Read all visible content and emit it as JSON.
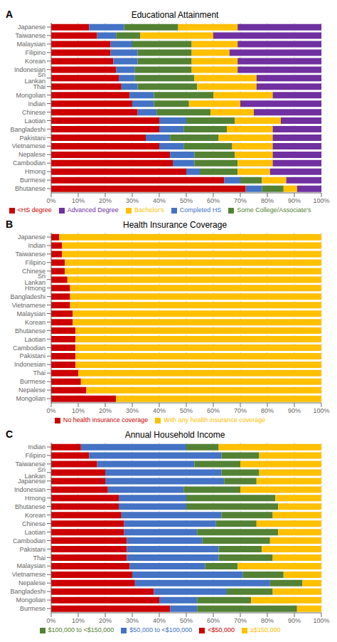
{
  "chart_data": [
    {
      "type": "bar",
      "title": "Educational Attainment",
      "annotations": [
        "A"
      ],
      "orientation": "horizontal",
      "stacked": true,
      "grid": true,
      "legend": "bottom",
      "categories": [
        "Japanese",
        "Taiwanese",
        "Malaysian",
        "Filipino",
        "Korean",
        "Indonesian",
        "Sri Lankan",
        "Thai",
        "Mongolian",
        "Indian",
        "Chinese",
        "Laotian",
        "Bangladeshi",
        "Pakistani",
        "Vietnamese",
        "Nepalese",
        "Cambodian",
        "Hmong",
        "Burmese",
        "Bhutanese"
      ],
      "series": [
        {
          "name": "<HS degree",
          "color": "#cc0000",
          "values": [
            14,
            17,
            22,
            22,
            23,
            24,
            25,
            26,
            29,
            30,
            32,
            40,
            40,
            35,
            40,
            44,
            45,
            50,
            64,
            72
          ]
        },
        {
          "name": "Completed HS",
          "color": "#4472c4",
          "values": [
            13,
            7,
            8,
            10,
            9,
            7,
            6,
            6,
            9,
            8,
            7,
            10,
            9,
            9,
            9,
            9,
            8,
            5,
            6,
            6
          ]
        },
        {
          "name": "Some College/Associate's",
          "color": "#548235",
          "values": [
            20,
            9,
            22,
            20,
            20,
            21,
            22,
            22,
            22,
            13,
            20,
            18,
            16,
            18,
            18,
            15,
            16,
            14,
            8,
            8
          ]
        },
        {
          "name": "Bachelor's",
          "color": "#ffc000",
          "values": [
            22,
            27,
            17,
            14,
            17,
            17,
            23,
            22,
            22,
            19,
            16,
            17,
            17,
            20,
            15,
            14,
            13,
            12,
            9,
            5
          ]
        },
        {
          "name": "Advanced Degree",
          "color": "#7030a0",
          "values": [
            31,
            40,
            31,
            34,
            31,
            31,
            24,
            24,
            18,
            30,
            25,
            15,
            18,
            18,
            18,
            18,
            18,
            19,
            13,
            9
          ]
        }
      ],
      "xlim": [
        0,
        100
      ],
      "xticks": [
        {
          "value": 0,
          "label": "0%"
        },
        {
          "value": 10,
          "label": "10%"
        },
        {
          "value": 20,
          "label": "20%"
        },
        {
          "value": 30,
          "label": "30%"
        },
        {
          "value": 40,
          "label": "40%"
        },
        {
          "value": 50,
          "label": "50%"
        },
        {
          "value": 60,
          "label": "60%"
        },
        {
          "value": 70,
          "label": "70%"
        },
        {
          "value": 80,
          "label": "80%"
        },
        {
          "value": 90,
          "label": "90%"
        },
        {
          "value": 100,
          "label": "100%"
        }
      ]
    },
    {
      "type": "bar",
      "title": "Health Insurance Coverage",
      "annotations": [
        "B"
      ],
      "orientation": "horizontal",
      "stacked": true,
      "grid": true,
      "legend": "bottom",
      "categories": [
        "Japanese",
        "Indian",
        "Taiwanese",
        "Filipino",
        "Chinese",
        "Sri Lankan",
        "Hmong",
        "Bangladeshi",
        "Vietnamese",
        "Malaysian",
        "Korean",
        "Bhutanese",
        "Laotian",
        "Cambodian",
        "Pakistani",
        "Indonesian",
        "Thai",
        "Burmese",
        "Nepalese",
        "Mongolian"
      ],
      "series": [
        {
          "name": "No health insurance coverage",
          "color": "#cc0000",
          "values": [
            3,
            4,
            4,
            5,
            5,
            6,
            7,
            7,
            7,
            8,
            8,
            9,
            9,
            9,
            9,
            9,
            10,
            11,
            13,
            24
          ]
        },
        {
          "name": "With any health insurance coverage",
          "color": "#ffc000",
          "values": [
            97,
            96,
            96,
            95,
            95,
            94,
            93,
            93,
            93,
            92,
            92,
            91,
            91,
            91,
            91,
            91,
            90,
            89,
            87,
            76
          ]
        }
      ],
      "xlim": [
        0,
        100
      ],
      "xticks": [
        {
          "value": 0,
          "label": "0%"
        },
        {
          "value": 10,
          "label": "10%"
        },
        {
          "value": 20,
          "label": "20%"
        },
        {
          "value": 30,
          "label": "30%"
        },
        {
          "value": 40,
          "label": "40%"
        },
        {
          "value": 50,
          "label": "50%"
        },
        {
          "value": 60,
          "label": "60%"
        },
        {
          "value": 70,
          "label": "70%"
        },
        {
          "value": 80,
          "label": "80%"
        },
        {
          "value": 90,
          "label": "90%"
        },
        {
          "value": 100,
          "label": "100%"
        }
      ]
    },
    {
      "type": "bar",
      "title": "Annual Household Income",
      "annotations": [
        "C"
      ],
      "orientation": "horizontal",
      "stacked": true,
      "grid": true,
      "legend": "bottom",
      "categories": [
        "Indian",
        "Filipino",
        "Taiwanese",
        "Sri Lankan",
        "Japanese",
        "Indonesian",
        "Hmong",
        "Bhutanese",
        "Korean",
        "Chinese",
        "Laotian",
        "Cambodian",
        "Pakistani",
        "Thai",
        "Malaysian",
        "Vietnamese",
        "Nepalese",
        "Bangladeshi",
        "Mongolian",
        "Burmese"
      ],
      "series": [
        {
          "name": "<$50,000",
          "color": "#cc0000",
          "values": [
            11,
            14,
            17,
            20,
            20,
            21,
            25,
            25,
            26,
            27,
            27,
            28,
            28,
            28,
            29,
            30,
            31,
            38,
            40,
            44
          ]
        },
        {
          "name": "$50,000 to <$100,000",
          "color": "#4472c4",
          "values": [
            39,
            49,
            36,
            43,
            44,
            28,
            25,
            25,
            37,
            34,
            27,
            28,
            34,
            34,
            28,
            41,
            50,
            27,
            14,
            10
          ]
        },
        {
          "name": "$100,000 to <$150,000",
          "color": "#548235",
          "values": [
            12,
            14,
            17,
            14,
            12,
            21,
            33,
            34,
            19,
            15,
            30,
            25,
            16,
            20,
            12,
            15,
            12,
            17,
            20,
            37
          ]
        },
        {
          "name": "≥$150,000",
          "color": "#ffc000",
          "values": [
            38,
            23,
            30,
            23,
            24,
            30,
            17,
            16,
            18,
            24,
            16,
            19,
            22,
            18,
            31,
            14,
            7,
            18,
            26,
            9
          ]
        }
      ],
      "xlim": [
        0,
        100
      ],
      "xticks": [
        {
          "value": 0,
          "label": "0%"
        },
        {
          "value": 10,
          "label": "10%"
        },
        {
          "value": 20,
          "label": "20%"
        },
        {
          "value": 30,
          "label": "30%"
        },
        {
          "value": 40,
          "label": "40%"
        },
        {
          "value": 50,
          "label": "50%"
        },
        {
          "value": 60,
          "label": "60%"
        },
        {
          "value": 70,
          "label": "70%"
        },
        {
          "value": 80,
          "label": "80%"
        },
        {
          "value": 90,
          "label": "90%"
        },
        {
          "value": 100,
          "label": "100%"
        }
      ]
    }
  ]
}
